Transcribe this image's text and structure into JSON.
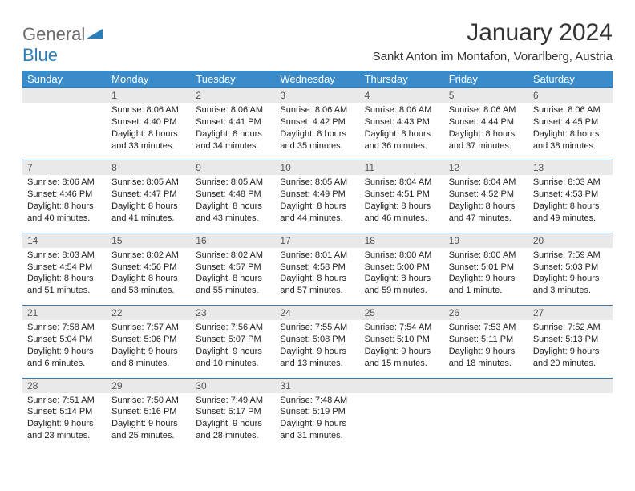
{
  "logo": {
    "text1": "General",
    "text2": "Blue"
  },
  "title": "January 2024",
  "location": "Sankt Anton im Montafon, Vorarlberg, Austria",
  "colors": {
    "header_bg": "#3a8bc9",
    "header_text": "#ffffff",
    "daynum_bg": "#e9e9e9",
    "daynum_border": "#3a7aa8",
    "logo_gray": "#6b6b6b",
    "logo_blue": "#2b7fb8"
  },
  "weekdays": [
    "Sunday",
    "Monday",
    "Tuesday",
    "Wednesday",
    "Thursday",
    "Friday",
    "Saturday"
  ],
  "weeks": [
    {
      "nums": [
        "",
        "1",
        "2",
        "3",
        "4",
        "5",
        "6"
      ],
      "cells": [
        "",
        "Sunrise: 8:06 AM\nSunset: 4:40 PM\nDaylight: 8 hours and 33 minutes.",
        "Sunrise: 8:06 AM\nSunset: 4:41 PM\nDaylight: 8 hours and 34 minutes.",
        "Sunrise: 8:06 AM\nSunset: 4:42 PM\nDaylight: 8 hours and 35 minutes.",
        "Sunrise: 8:06 AM\nSunset: 4:43 PM\nDaylight: 8 hours and 36 minutes.",
        "Sunrise: 8:06 AM\nSunset: 4:44 PM\nDaylight: 8 hours and 37 minutes.",
        "Sunrise: 8:06 AM\nSunset: 4:45 PM\nDaylight: 8 hours and 38 minutes."
      ]
    },
    {
      "nums": [
        "7",
        "8",
        "9",
        "10",
        "11",
        "12",
        "13"
      ],
      "cells": [
        "Sunrise: 8:06 AM\nSunset: 4:46 PM\nDaylight: 8 hours and 40 minutes.",
        "Sunrise: 8:05 AM\nSunset: 4:47 PM\nDaylight: 8 hours and 41 minutes.",
        "Sunrise: 8:05 AM\nSunset: 4:48 PM\nDaylight: 8 hours and 43 minutes.",
        "Sunrise: 8:05 AM\nSunset: 4:49 PM\nDaylight: 8 hours and 44 minutes.",
        "Sunrise: 8:04 AM\nSunset: 4:51 PM\nDaylight: 8 hours and 46 minutes.",
        "Sunrise: 8:04 AM\nSunset: 4:52 PM\nDaylight: 8 hours and 47 minutes.",
        "Sunrise: 8:03 AM\nSunset: 4:53 PM\nDaylight: 8 hours and 49 minutes."
      ]
    },
    {
      "nums": [
        "14",
        "15",
        "16",
        "17",
        "18",
        "19",
        "20"
      ],
      "cells": [
        "Sunrise: 8:03 AM\nSunset: 4:54 PM\nDaylight: 8 hours and 51 minutes.",
        "Sunrise: 8:02 AM\nSunset: 4:56 PM\nDaylight: 8 hours and 53 minutes.",
        "Sunrise: 8:02 AM\nSunset: 4:57 PM\nDaylight: 8 hours and 55 minutes.",
        "Sunrise: 8:01 AM\nSunset: 4:58 PM\nDaylight: 8 hours and 57 minutes.",
        "Sunrise: 8:00 AM\nSunset: 5:00 PM\nDaylight: 8 hours and 59 minutes.",
        "Sunrise: 8:00 AM\nSunset: 5:01 PM\nDaylight: 9 hours and 1 minute.",
        "Sunrise: 7:59 AM\nSunset: 5:03 PM\nDaylight: 9 hours and 3 minutes."
      ]
    },
    {
      "nums": [
        "21",
        "22",
        "23",
        "24",
        "25",
        "26",
        "27"
      ],
      "cells": [
        "Sunrise: 7:58 AM\nSunset: 5:04 PM\nDaylight: 9 hours and 6 minutes.",
        "Sunrise: 7:57 AM\nSunset: 5:06 PM\nDaylight: 9 hours and 8 minutes.",
        "Sunrise: 7:56 AM\nSunset: 5:07 PM\nDaylight: 9 hours and 10 minutes.",
        "Sunrise: 7:55 AM\nSunset: 5:08 PM\nDaylight: 9 hours and 13 minutes.",
        "Sunrise: 7:54 AM\nSunset: 5:10 PM\nDaylight: 9 hours and 15 minutes.",
        "Sunrise: 7:53 AM\nSunset: 5:11 PM\nDaylight: 9 hours and 18 minutes.",
        "Sunrise: 7:52 AM\nSunset: 5:13 PM\nDaylight: 9 hours and 20 minutes."
      ]
    },
    {
      "nums": [
        "28",
        "29",
        "30",
        "31",
        "",
        "",
        ""
      ],
      "cells": [
        "Sunrise: 7:51 AM\nSunset: 5:14 PM\nDaylight: 9 hours and 23 minutes.",
        "Sunrise: 7:50 AM\nSunset: 5:16 PM\nDaylight: 9 hours and 25 minutes.",
        "Sunrise: 7:49 AM\nSunset: 5:17 PM\nDaylight: 9 hours and 28 minutes.",
        "Sunrise: 7:48 AM\nSunset: 5:19 PM\nDaylight: 9 hours and 31 minutes.",
        "",
        "",
        ""
      ]
    }
  ]
}
